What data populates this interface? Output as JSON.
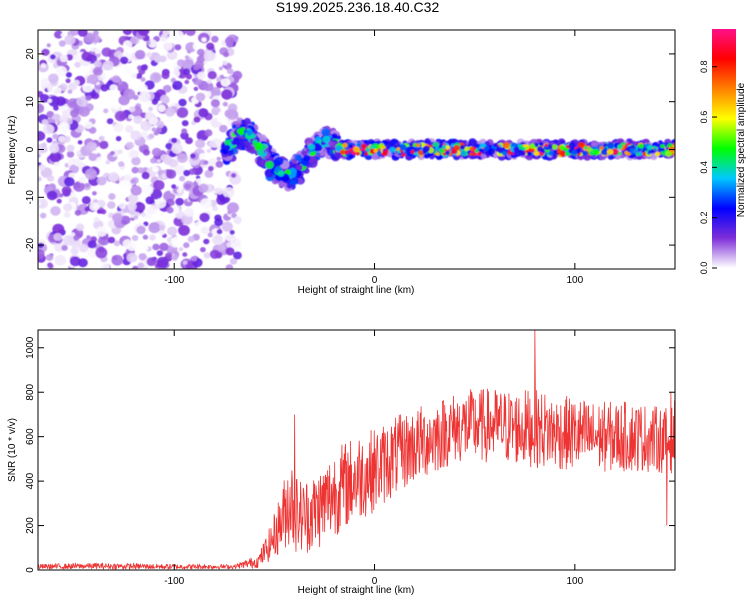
{
  "title": "S199.2025.236.18.40.C32",
  "chart_data": [
    {
      "type": "heatmap",
      "name": "spectrogram",
      "xlabel": "Height of straight line (km)",
      "ylabel": "Frequency (Hz)",
      "xlim": [
        -168,
        150
      ],
      "ylim": [
        -25,
        25
      ],
      "xticks": [
        -100,
        0,
        100
      ],
      "xtick_labels": [
        "-100",
        "0",
        "100"
      ],
      "yticks": [
        -20,
        -10,
        0,
        10,
        20
      ],
      "ytick_labels": [
        "-20",
        "-10",
        "0",
        "10",
        "20"
      ],
      "colorbar": {
        "label": "Normalized spectral amplitude",
        "range": [
          0,
          0.95
        ],
        "ticks": [
          0.0,
          0.2,
          0.4,
          0.6,
          0.8
        ],
        "tick_labels": [
          "0.0",
          "0.2",
          "0.4",
          "0.6",
          "0.8"
        ],
        "colors": [
          "#ffffff",
          "#7e2fd9",
          "#0000ff",
          "#00c8ff",
          "#00ff00",
          "#ffff00",
          "#ff8000",
          "#ff0000",
          "#ff1088"
        ]
      },
      "regions": [
        {
          "x_range": [
            -168,
            -68
          ],
          "y_range": [
            -25,
            25
          ],
          "description_level": "scattered noise",
          "amplitude": [
            0.0,
            0.15
          ]
        },
        {
          "x_range": [
            -75,
            -18
          ],
          "y_range": [
            -8,
            6
          ],
          "description_level": "wavy signal band",
          "amplitude": [
            0.1,
            0.5
          ]
        },
        {
          "x_range": [
            -18,
            150
          ],
          "y_range": [
            -1,
            1
          ],
          "description_level": "narrow constant band near 0 Hz",
          "amplitude": [
            0.2,
            0.95
          ]
        }
      ]
    },
    {
      "type": "line",
      "name": "snr",
      "xlabel": "Height of straight line (km)",
      "ylabel": "SNR (10 * v/v)",
      "xlim": [
        -168,
        150
      ],
      "ylim": [
        0,
        1080
      ],
      "xticks": [
        -100,
        0,
        100
      ],
      "xtick_labels": [
        "-100",
        "0",
        "100"
      ],
      "yticks": [
        0,
        200,
        400,
        600,
        800,
        1000
      ],
      "ytick_labels": [
        "0",
        "200",
        "400",
        "600",
        "800",
        "1000"
      ],
      "color": "#ee3333",
      "series": [
        {
          "name": "SNR envelope",
          "x": [
            -168,
            -140,
            -100,
            -70,
            -58,
            -52,
            -46,
            -42,
            -40,
            -36,
            -30,
            -25,
            -20,
            -15,
            -8,
            0,
            10,
            20,
            30,
            40,
            50,
            60,
            70,
            80,
            90,
            100,
            110,
            120,
            130,
            140,
            148,
            150
          ],
          "mean": [
            15,
            18,
            15,
            15,
            40,
            120,
            230,
            330,
            260,
            240,
            260,
            300,
            350,
            380,
            420,
            450,
            510,
            560,
            600,
            640,
            650,
            650,
            640,
            640,
            620,
            610,
            600,
            600,
            600,
            590,
            580,
            620
          ],
          "amp": [
            12,
            14,
            12,
            10,
            30,
            80,
            150,
            220,
            180,
            170,
            180,
            190,
            200,
            200,
            200,
            190,
            180,
            170,
            170,
            160,
            170,
            170,
            170,
            180,
            170,
            170,
            160,
            160,
            160,
            150,
            150,
            150
          ]
        }
      ],
      "peaks": [
        {
          "x": 80,
          "y": 1080
        },
        {
          "x": -40,
          "y": 700
        },
        {
          "x": 148,
          "y": 800
        },
        {
          "x": 146,
          "y": 200
        }
      ]
    }
  ]
}
